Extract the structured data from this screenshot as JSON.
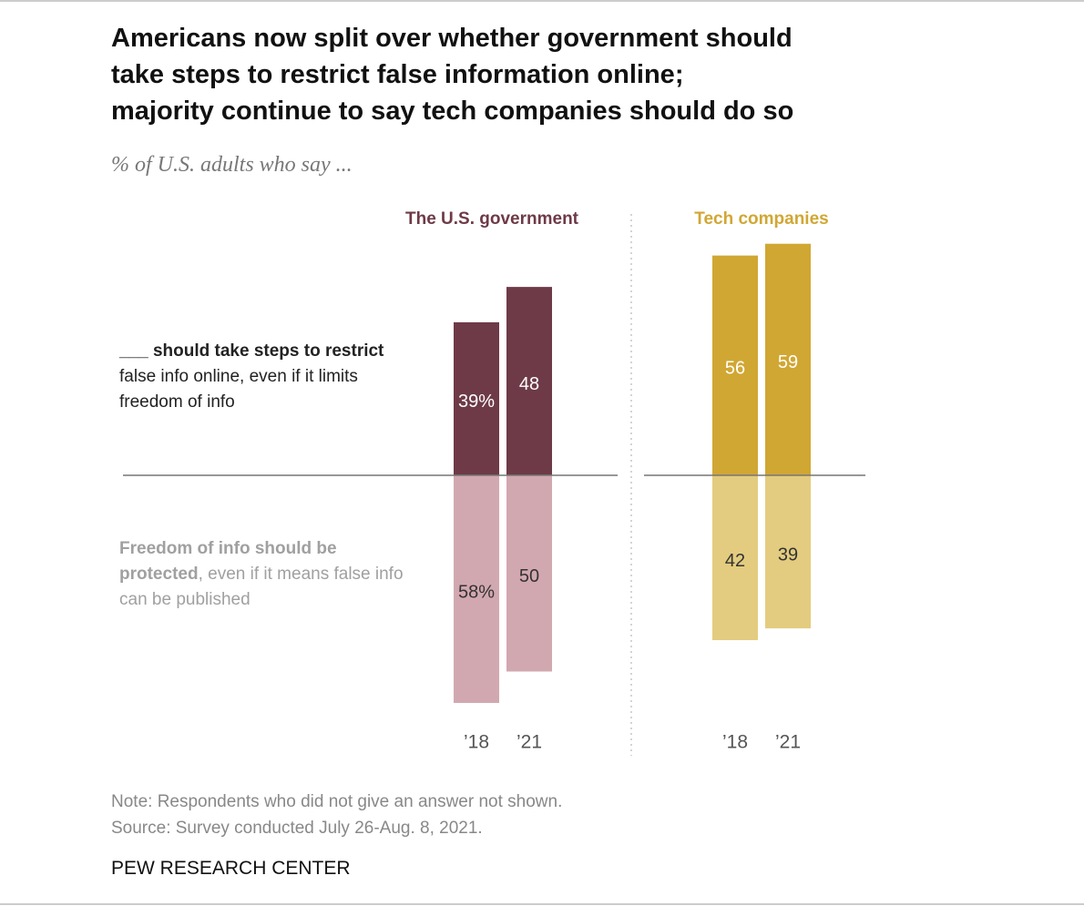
{
  "title": [
    "Americans now split over whether government should",
    "take steps to restrict false information online;",
    "majority continue to say tech companies should do so"
  ],
  "subtitle": "% of U.S. adults who say ...",
  "note": "Note: Respondents who did not give an answer not shown.",
  "source": "Source: Survey conducted July 26-Aug. 8, 2021.",
  "credit": "PEW RESEARCH CENTER",
  "chart_data": [
    {
      "type": "bar",
      "title": "The U.S. government",
      "categories": [
        "’18",
        "’21"
      ],
      "series": [
        {
          "name_bold": "___ should take steps to restrict",
          "name_rest": "false info online, even if it limits freedom of info",
          "color": "#6e3a47",
          "values": [
            39,
            48
          ],
          "value_labels": [
            "39%",
            "48"
          ]
        },
        {
          "name_bold": "Freedom of info should be protected",
          "name_rest": ", even if it means false info can be published",
          "color": "#d2a8b0",
          "values": [
            58,
            50
          ],
          "value_labels": [
            "58%",
            "50"
          ]
        }
      ]
    },
    {
      "type": "bar",
      "title": "Tech companies",
      "categories": [
        "’18",
        "’21"
      ],
      "series": [
        {
          "color": "#d1a733",
          "values": [
            56,
            59
          ]
        },
        {
          "color": "#e3cc7f",
          "values": [
            42,
            39
          ]
        }
      ]
    }
  ]
}
